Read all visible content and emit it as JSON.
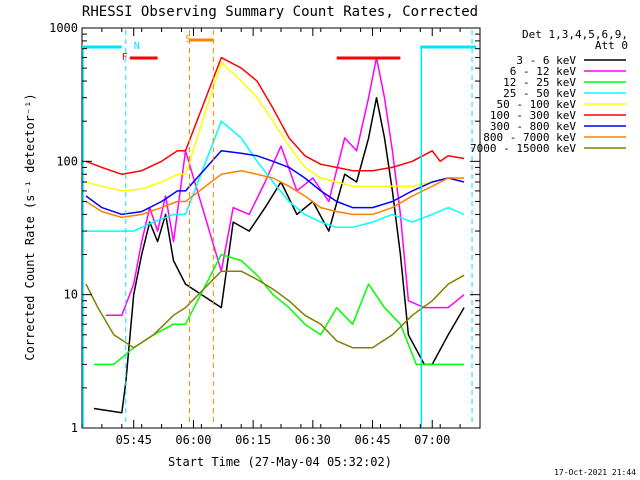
{
  "chart_data": {
    "type": "line",
    "title": "RHESSI Observing Summary Count Rates, Corrected",
    "xlabel": "Start Time (27-May-04 05:32:02)",
    "ylabel": "Corrected Count Rate (s⁻¹ detector⁻¹)",
    "yscale": "log",
    "ylim": [
      1,
      1000
    ],
    "xlim": [
      "05:32",
      "07:12"
    ],
    "x_ticks": [
      "05:45",
      "06:00",
      "06:15",
      "06:30",
      "06:45",
      "07:00"
    ],
    "y_ticks": [
      "1",
      "10",
      "100",
      "1000"
    ],
    "grid": false,
    "legend_position": "right",
    "legend_header": [
      "Det 1,3,4,5,6,9,",
      "Att 0"
    ],
    "footer_date": "17-Oct-2021 21:44",
    "flags": [
      {
        "label": "F",
        "color": "#ff0000"
      },
      {
        "label": "N",
        "color": "#00e5ff"
      },
      {
        "label": "S",
        "color": "#ff8000"
      }
    ],
    "series": [
      {
        "name": "3 - 6 keV",
        "color": "#000000",
        "x": [
          "05:35",
          "05:42",
          "05:43",
          "05:45",
          "05:47",
          "05:49",
          "05:51",
          "05:53",
          "05:55",
          "05:58",
          "06:07",
          "06:10",
          "06:14",
          "06:18",
          "06:22",
          "06:26",
          "06:30",
          "06:34",
          "06:38",
          "06:41",
          "06:44",
          "06:46",
          "06:48",
          "06:50",
          "06:52",
          "06:54",
          "06:58",
          "07:00",
          "07:04",
          "07:08"
        ],
        "y": [
          1.4,
          1.3,
          2.2,
          10,
          20,
          35,
          25,
          40,
          18,
          12,
          8,
          35,
          30,
          45,
          70,
          40,
          50,
          30,
          80,
          70,
          150,
          300,
          150,
          60,
          20,
          5,
          3,
          3,
          5,
          8
        ]
      },
      {
        "name": "6 - 12 keV",
        "color": "#ff00ff",
        "x": [
          "05:38",
          "05:42",
          "05:45",
          "05:47",
          "05:49",
          "05:51",
          "05:53",
          "05:55",
          "05:58",
          "06:07",
          "06:10",
          "06:14",
          "06:18",
          "06:22",
          "06:26",
          "06:30",
          "06:34",
          "06:38",
          "06:41",
          "06:44",
          "06:46",
          "06:48",
          "06:50",
          "06:52",
          "06:54",
          "06:58",
          "07:04",
          "07:08"
        ],
        "y": [
          7,
          7,
          12,
          25,
          45,
          30,
          55,
          25,
          120,
          15,
          45,
          40,
          70,
          130,
          60,
          75,
          50,
          150,
          120,
          300,
          600,
          300,
          120,
          40,
          9,
          8,
          8,
          10
        ]
      },
      {
        "name": "12 - 25 keV",
        "color": "#00ff00",
        "x": [
          "05:35",
          "05:40",
          "05:45",
          "05:50",
          "05:55",
          "05:58",
          "06:07",
          "06:12",
          "06:16",
          "06:20",
          "06:24",
          "06:28",
          "06:32",
          "06:36",
          "06:40",
          "06:44",
          "06:48",
          "06:52",
          "06:56",
          "07:00",
          "07:04",
          "07:08"
        ],
        "y": [
          3,
          3,
          4,
          5,
          6,
          6,
          20,
          18,
          14,
          10,
          8,
          6,
          5,
          8,
          6,
          12,
          8,
          6,
          3,
          3,
          3,
          3
        ]
      },
      {
        "name": "25 - 50 keV",
        "color": "#00ffff",
        "x": [
          "05:33",
          "05:40",
          "05:45",
          "05:50",
          "05:55",
          "05:58",
          "06:07",
          "06:12",
          "06:16",
          "06:20",
          "06:24",
          "06:28",
          "06:32",
          "06:36",
          "06:40",
          "06:45",
          "06:50",
          "06:55",
          "07:00",
          "07:04",
          "07:08"
        ],
        "y": [
          30,
          30,
          30,
          35,
          40,
          40,
          200,
          150,
          100,
          70,
          50,
          40,
          35,
          32,
          32,
          35,
          40,
          35,
          40,
          45,
          40
        ]
      },
      {
        "name": "50 - 100 keV",
        "color": "#ffff00",
        "x": [
          "05:33",
          "05:37",
          "05:42",
          "05:47",
          "05:52",
          "05:56",
          "05:58",
          "06:07",
          "06:12",
          "06:16",
          "06:20",
          "06:24",
          "06:28",
          "06:32",
          "06:36",
          "06:40",
          "06:45",
          "06:50",
          "06:55",
          "07:00",
          "07:04",
          "07:08"
        ],
        "y": [
          70,
          65,
          60,
          62,
          70,
          80,
          80,
          550,
          400,
          300,
          200,
          130,
          90,
          75,
          70,
          65,
          65,
          65,
          65,
          70,
          75,
          75
        ]
      },
      {
        "name": "100 - 300 keV",
        "color": "#ff0000",
        "x": [
          "05:33",
          "05:37",
          "05:42",
          "05:47",
          "05:52",
          "05:56",
          "05:58",
          "06:07",
          "06:12",
          "06:16",
          "06:20",
          "06:24",
          "06:28",
          "06:32",
          "06:36",
          "06:40",
          "06:45",
          "06:50",
          "06:55",
          "07:00",
          "07:02",
          "07:04",
          "07:08"
        ],
        "y": [
          100,
          90,
          80,
          85,
          100,
          120,
          120,
          600,
          500,
          400,
          250,
          150,
          110,
          95,
          90,
          85,
          85,
          90,
          100,
          120,
          100,
          110,
          105
        ]
      },
      {
        "name": "300 - 800 keV",
        "color": "#0000ff",
        "x": [
          "05:33",
          "05:37",
          "05:42",
          "05:47",
          "05:52",
          "05:56",
          "05:58",
          "06:07",
          "06:12",
          "06:16",
          "06:20",
          "06:24",
          "06:28",
          "06:32",
          "06:36",
          "06:40",
          "06:45",
          "06:50",
          "06:55",
          "07:00",
          "07:04",
          "07:08"
        ],
        "y": [
          55,
          45,
          40,
          42,
          50,
          60,
          60,
          120,
          115,
          110,
          100,
          90,
          75,
          60,
          50,
          45,
          45,
          50,
          60,
          70,
          75,
          70
        ]
      },
      {
        "name": "800 - 7000 keV",
        "color": "#ff8000",
        "x": [
          "05:33",
          "05:37",
          "05:42",
          "05:47",
          "05:52",
          "05:56",
          "05:58",
          "06:07",
          "06:12",
          "06:16",
          "06:20",
          "06:24",
          "06:28",
          "06:32",
          "06:36",
          "06:40",
          "06:45",
          "06:50",
          "06:55",
          "07:00",
          "07:04",
          "07:08"
        ],
        "y": [
          50,
          42,
          38,
          40,
          45,
          50,
          50,
          80,
          85,
          80,
          75,
          65,
          55,
          45,
          42,
          40,
          40,
          45,
          55,
          65,
          75,
          75
        ]
      },
      {
        "name": "7000 - 15000 keV",
        "color": "#808000",
        "x": [
          "05:33",
          "05:36",
          "05:40",
          "05:45",
          "05:50",
          "05:55",
          "05:58",
          "06:07",
          "06:12",
          "06:16",
          "06:20",
          "06:24",
          "06:28",
          "06:32",
          "06:36",
          "06:40",
          "06:45",
          "06:50",
          "06:55",
          "07:00",
          "07:04",
          "07:08"
        ],
        "y": [
          12,
          8,
          5,
          4,
          5,
          7,
          8,
          15,
          15,
          13,
          11,
          9,
          7,
          6,
          4.5,
          4,
          4,
          5,
          7,
          9,
          12,
          14
        ]
      }
    ]
  }
}
